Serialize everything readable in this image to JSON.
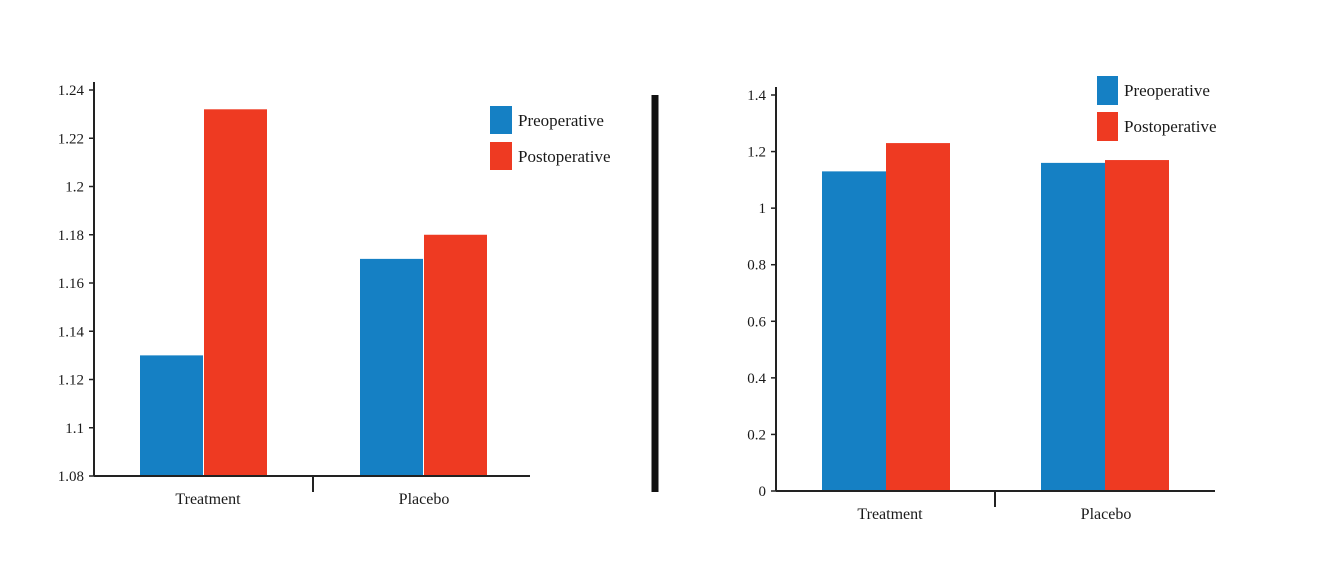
{
  "colors": {
    "preoperative": "#1580c4",
    "postoperative": "#ee3a22",
    "axis": "#222222",
    "divider": "#111111"
  },
  "chart_data": [
    {
      "type": "bar",
      "categories": [
        "Treatment",
        "Placebo"
      ],
      "series": [
        {
          "name": "Preoperative",
          "values": [
            1.13,
            1.17
          ]
        },
        {
          "name": "Postoperative",
          "values": [
            1.232,
            1.18
          ]
        }
      ],
      "yticks": [
        "1.08",
        "1.1",
        "1.12",
        "1.14",
        "1.16",
        "1.18",
        "1.2",
        "1.22",
        "1.24"
      ],
      "ylim": [
        1.08,
        1.24
      ],
      "grid": false,
      "legend": "top-right"
    },
    {
      "type": "bar",
      "categories": [
        "Treatment",
        "Placebo"
      ],
      "series": [
        {
          "name": "Preoperative",
          "values": [
            1.13,
            1.16
          ]
        },
        {
          "name": "Postoperative",
          "values": [
            1.23,
            1.17
          ]
        }
      ],
      "yticks": [
        "0",
        "0.2",
        "0.4",
        "0.6",
        "0.8",
        "1",
        "1.2",
        "1.4"
      ],
      "ylim": [
        0,
        1.4
      ],
      "grid": false,
      "legend": "top-right"
    }
  ]
}
